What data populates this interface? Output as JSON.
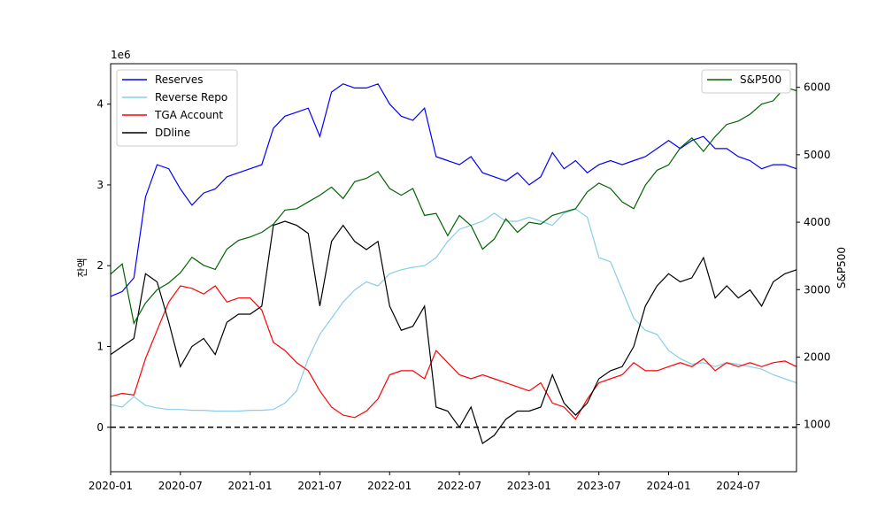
{
  "chart_data": {
    "type": "line",
    "x_ticks": [
      "2020-01",
      "2020-07",
      "2021-01",
      "2021-07",
      "2022-01",
      "2022-07",
      "2023-01",
      "2023-07",
      "2024-01",
      "2024-07"
    ],
    "xlim": [
      "2020-01",
      "2024-12"
    ],
    "left_axis": {
      "ylabel": "잔액",
      "scale_label": "1e6",
      "ticks": [
        0,
        1,
        2,
        3,
        4
      ],
      "ylim": [
        -0.55,
        4.5
      ]
    },
    "right_axis": {
      "ylabel": "S&P500",
      "ticks": [
        1000,
        2000,
        3000,
        4000,
        5000,
        6000
      ],
      "ylim": [
        300,
        6350
      ]
    },
    "zero_line": {
      "y": 0,
      "style": "dashed",
      "color": "#000000"
    },
    "legend_left": {
      "placement": "upper-left",
      "entries": [
        "Reserves",
        "Reverse Repo",
        "TGA Account",
        "DDline"
      ]
    },
    "legend_right": {
      "placement": "upper-right",
      "entries": [
        "S&P500"
      ]
    },
    "series": [
      {
        "name": "Reserves",
        "axis": "left",
        "color": "#0000ff",
        "x": [
          "2020-01",
          "2020-02",
          "2020-03",
          "2020-04",
          "2020-05",
          "2020-06",
          "2020-07",
          "2020-08",
          "2020-09",
          "2020-10",
          "2020-11",
          "2020-12",
          "2021-01",
          "2021-02",
          "2021-03",
          "2021-04",
          "2021-05",
          "2021-06",
          "2021-07",
          "2021-08",
          "2021-09",
          "2021-10",
          "2021-11",
          "2021-12",
          "2022-01",
          "2022-02",
          "2022-03",
          "2022-04",
          "2022-05",
          "2022-06",
          "2022-07",
          "2022-08",
          "2022-09",
          "2022-10",
          "2022-11",
          "2022-12",
          "2023-01",
          "2023-02",
          "2023-03",
          "2023-04",
          "2023-05",
          "2023-06",
          "2023-07",
          "2023-08",
          "2023-09",
          "2023-10",
          "2023-11",
          "2023-12",
          "2024-01",
          "2024-02",
          "2024-03",
          "2024-04",
          "2024-05",
          "2024-06",
          "2024-07",
          "2024-08",
          "2024-09",
          "2024-10",
          "2024-11",
          "2024-12"
        ],
        "values": [
          1.62,
          1.68,
          1.85,
          2.85,
          3.25,
          3.2,
          2.95,
          2.75,
          2.9,
          2.95,
          3.1,
          3.15,
          3.2,
          3.25,
          3.7,
          3.85,
          3.9,
          3.95,
          3.6,
          4.15,
          4.25,
          4.2,
          4.2,
          4.25,
          4.0,
          3.85,
          3.8,
          3.95,
          3.35,
          3.3,
          3.25,
          3.35,
          3.15,
          3.1,
          3.05,
          3.15,
          3.0,
          3.1,
          3.4,
          3.2,
          3.3,
          3.15,
          3.25,
          3.3,
          3.25,
          3.3,
          3.35,
          3.45,
          3.55,
          3.45,
          3.55,
          3.6,
          3.45,
          3.45,
          3.35,
          3.3,
          3.2,
          3.25,
          3.25,
          3.2
        ]
      },
      {
        "name": "Reverse Repo",
        "axis": "left",
        "color": "#87ceeb",
        "x": [
          "2020-01",
          "2020-02",
          "2020-03",
          "2020-04",
          "2020-05",
          "2020-06",
          "2020-07",
          "2020-08",
          "2020-09",
          "2020-10",
          "2020-11",
          "2020-12",
          "2021-01",
          "2021-02",
          "2021-03",
          "2021-04",
          "2021-05",
          "2021-06",
          "2021-07",
          "2021-08",
          "2021-09",
          "2021-10",
          "2021-11",
          "2021-12",
          "2022-01",
          "2022-02",
          "2022-03",
          "2022-04",
          "2022-05",
          "2022-06",
          "2022-07",
          "2022-08",
          "2022-09",
          "2022-10",
          "2022-11",
          "2022-12",
          "2023-01",
          "2023-02",
          "2023-03",
          "2023-04",
          "2023-05",
          "2023-06",
          "2023-07",
          "2023-08",
          "2023-09",
          "2023-10",
          "2023-11",
          "2023-12",
          "2024-01",
          "2024-02",
          "2024-03",
          "2024-04",
          "2024-05",
          "2024-06",
          "2024-07",
          "2024-08",
          "2024-09",
          "2024-10",
          "2024-11",
          "2024-12"
        ],
        "values": [
          0.28,
          0.25,
          0.38,
          0.27,
          0.24,
          0.22,
          0.22,
          0.21,
          0.21,
          0.2,
          0.2,
          0.2,
          0.21,
          0.21,
          0.22,
          0.3,
          0.45,
          0.85,
          1.15,
          1.35,
          1.55,
          1.7,
          1.8,
          1.75,
          1.9,
          1.95,
          1.98,
          2.0,
          2.1,
          2.3,
          2.45,
          2.5,
          2.55,
          2.65,
          2.55,
          2.55,
          2.6,
          2.55,
          2.5,
          2.65,
          2.7,
          2.6,
          2.1,
          2.05,
          1.7,
          1.35,
          1.2,
          1.15,
          0.95,
          0.85,
          0.78,
          0.8,
          0.75,
          0.8,
          0.78,
          0.75,
          0.72,
          0.65,
          0.6,
          0.55
        ]
      },
      {
        "name": "TGA Account",
        "axis": "left",
        "color": "#ff0000",
        "x": [
          "2020-01",
          "2020-02",
          "2020-03",
          "2020-04",
          "2020-05",
          "2020-06",
          "2020-07",
          "2020-08",
          "2020-09",
          "2020-10",
          "2020-11",
          "2020-12",
          "2021-01",
          "2021-02",
          "2021-03",
          "2021-04",
          "2021-05",
          "2021-06",
          "2021-07",
          "2021-08",
          "2021-09",
          "2021-10",
          "2021-11",
          "2021-12",
          "2022-01",
          "2022-02",
          "2022-03",
          "2022-04",
          "2022-05",
          "2022-06",
          "2022-07",
          "2022-08",
          "2022-09",
          "2022-10",
          "2022-11",
          "2022-12",
          "2023-01",
          "2023-02",
          "2023-03",
          "2023-04",
          "2023-05",
          "2023-06",
          "2023-07",
          "2023-08",
          "2023-09",
          "2023-10",
          "2023-11",
          "2023-12",
          "2024-01",
          "2024-02",
          "2024-03",
          "2024-04",
          "2024-05",
          "2024-06",
          "2024-07",
          "2024-08",
          "2024-09",
          "2024-10",
          "2024-11",
          "2024-12"
        ],
        "values": [
          0.38,
          0.42,
          0.4,
          0.85,
          1.2,
          1.55,
          1.75,
          1.72,
          1.65,
          1.75,
          1.55,
          1.6,
          1.6,
          1.45,
          1.05,
          0.95,
          0.8,
          0.7,
          0.45,
          0.25,
          0.15,
          0.12,
          0.2,
          0.35,
          0.65,
          0.7,
          0.7,
          0.6,
          0.95,
          0.8,
          0.65,
          0.6,
          0.65,
          0.6,
          0.55,
          0.5,
          0.45,
          0.55,
          0.3,
          0.25,
          0.1,
          0.35,
          0.55,
          0.6,
          0.65,
          0.8,
          0.7,
          0.7,
          0.75,
          0.8,
          0.75,
          0.85,
          0.7,
          0.8,
          0.75,
          0.8,
          0.75,
          0.8,
          0.82,
          0.75
        ]
      },
      {
        "name": "DDline",
        "axis": "left",
        "color": "#000000",
        "x": [
          "2020-01",
          "2020-02",
          "2020-03",
          "2020-04",
          "2020-05",
          "2020-06",
          "2020-07",
          "2020-08",
          "2020-09",
          "2020-10",
          "2020-11",
          "2020-12",
          "2021-01",
          "2021-02",
          "2021-03",
          "2021-04",
          "2021-05",
          "2021-06",
          "2021-07",
          "2021-08",
          "2021-09",
          "2021-10",
          "2021-11",
          "2021-12",
          "2022-01",
          "2022-02",
          "2022-03",
          "2022-04",
          "2022-05",
          "2022-06",
          "2022-07",
          "2022-08",
          "2022-09",
          "2022-10",
          "2022-11",
          "2022-12",
          "2023-01",
          "2023-02",
          "2023-03",
          "2023-04",
          "2023-05",
          "2023-06",
          "2023-07",
          "2023-08",
          "2023-09",
          "2023-10",
          "2023-11",
          "2023-12",
          "2024-01",
          "2024-02",
          "2024-03",
          "2024-04",
          "2024-05",
          "2024-06",
          "2024-07",
          "2024-08",
          "2024-09",
          "2024-10",
          "2024-11",
          "2024-12"
        ],
        "values": [
          0.9,
          1.0,
          1.1,
          1.9,
          1.8,
          1.3,
          0.75,
          1.0,
          1.1,
          0.9,
          1.3,
          1.4,
          1.4,
          1.5,
          2.5,
          2.55,
          2.5,
          2.4,
          1.5,
          2.3,
          2.5,
          2.3,
          2.2,
          2.3,
          1.5,
          1.2,
          1.25,
          1.5,
          0.25,
          0.2,
          0.0,
          0.25,
          -0.2,
          -0.1,
          0.1,
          0.2,
          0.2,
          0.25,
          0.65,
          0.3,
          0.15,
          0.3,
          0.6,
          0.7,
          0.75,
          1.0,
          1.5,
          1.75,
          1.9,
          1.8,
          1.85,
          2.1,
          1.6,
          1.75,
          1.6,
          1.7,
          1.5,
          1.8,
          1.9,
          1.95
        ]
      },
      {
        "name": "S&P500",
        "axis": "right",
        "color": "#006400",
        "x": [
          "2020-01",
          "2020-02",
          "2020-03",
          "2020-04",
          "2020-05",
          "2020-06",
          "2020-07",
          "2020-08",
          "2020-09",
          "2020-10",
          "2020-11",
          "2020-12",
          "2021-01",
          "2021-02",
          "2021-03",
          "2021-04",
          "2021-05",
          "2021-06",
          "2021-07",
          "2021-08",
          "2021-09",
          "2021-10",
          "2021-11",
          "2021-12",
          "2022-01",
          "2022-02",
          "2022-03",
          "2022-04",
          "2022-05",
          "2022-06",
          "2022-07",
          "2022-08",
          "2022-09",
          "2022-10",
          "2022-11",
          "2022-12",
          "2023-01",
          "2023-02",
          "2023-03",
          "2023-04",
          "2023-05",
          "2023-06",
          "2023-07",
          "2023-08",
          "2023-09",
          "2023-10",
          "2023-11",
          "2023-12",
          "2024-01",
          "2024-02",
          "2024-03",
          "2024-04",
          "2024-05",
          "2024-06",
          "2024-07",
          "2024-08",
          "2024-09",
          "2024-10",
          "2024-11",
          "2024-12"
        ],
        "values": [
          3230,
          3380,
          2500,
          2800,
          3000,
          3100,
          3250,
          3480,
          3360,
          3300,
          3600,
          3730,
          3780,
          3850,
          3970,
          4180,
          4200,
          4300,
          4400,
          4520,
          4350,
          4600,
          4650,
          4750,
          4500,
          4400,
          4500,
          4100,
          4130,
          3800,
          4100,
          3950,
          3600,
          3750,
          4050,
          3850,
          4000,
          3970,
          4100,
          4150,
          4200,
          4450,
          4580,
          4500,
          4300,
          4200,
          4550,
          4770,
          4850,
          5100,
          5250,
          5050,
          5270,
          5450,
          5500,
          5600,
          5750,
          5800,
          6000,
          5950
        ]
      }
    ]
  }
}
